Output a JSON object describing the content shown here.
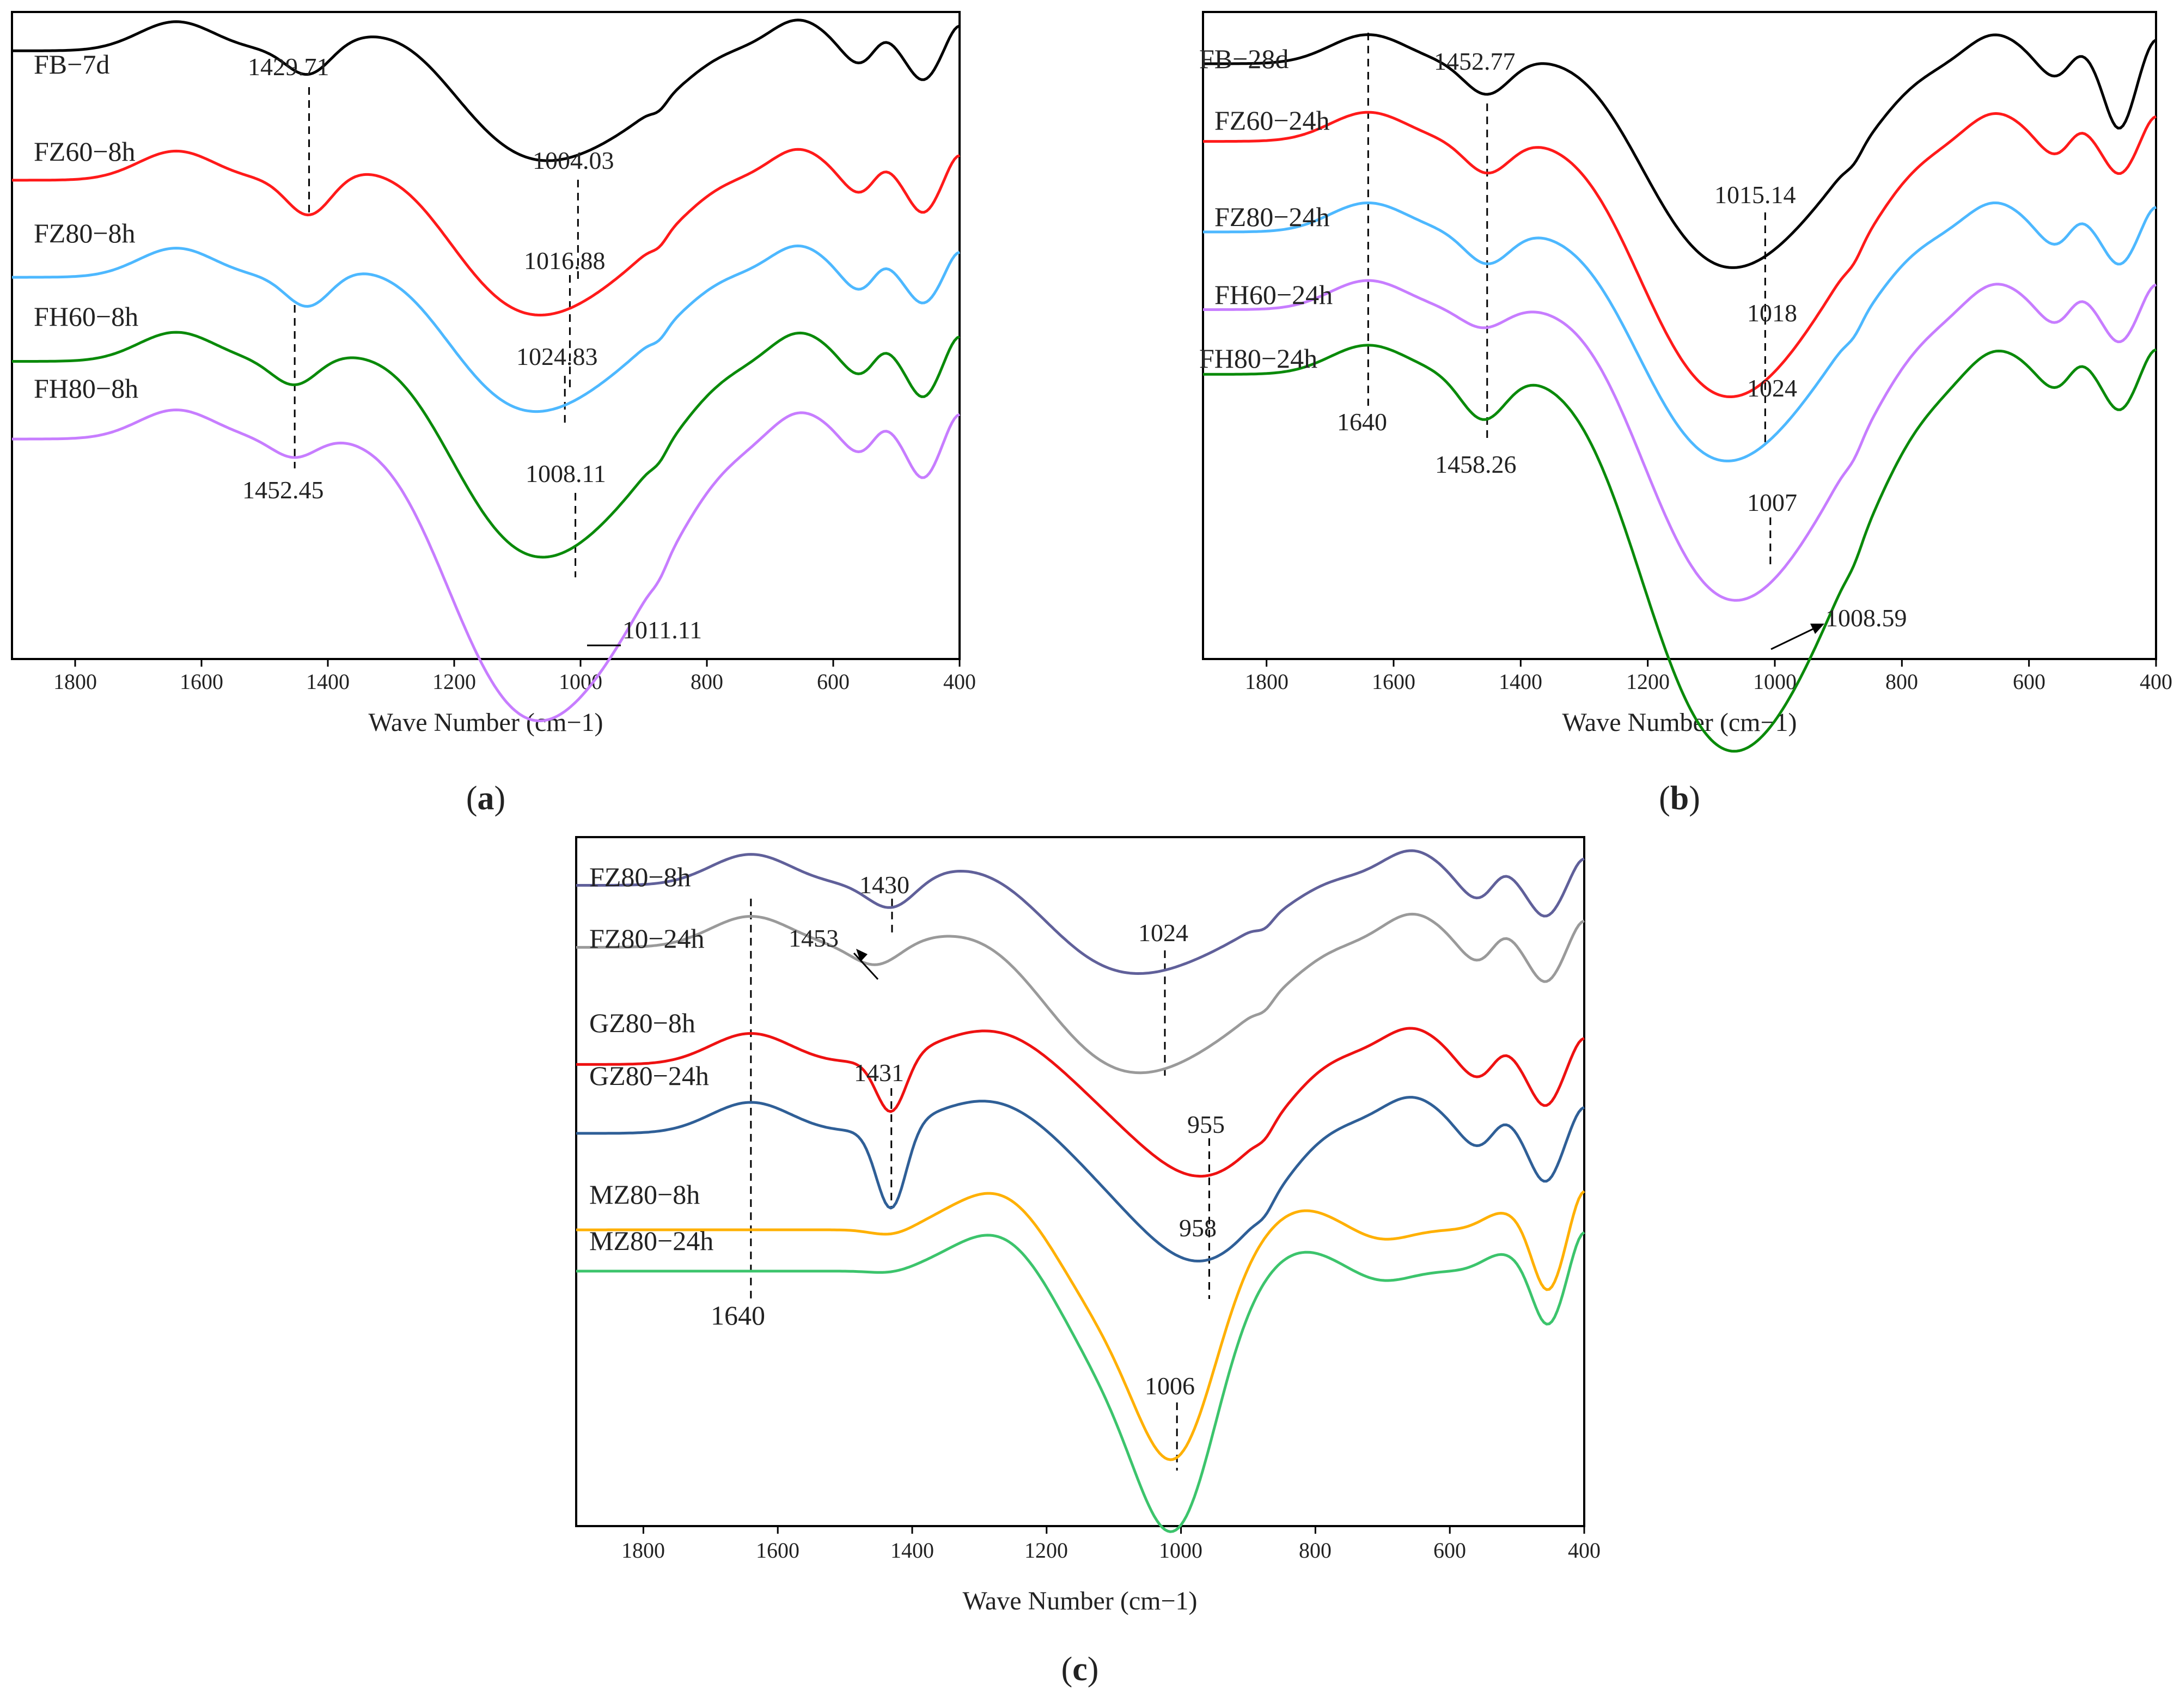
{
  "colors": {
    "black": "#000000",
    "red": "#ff1a1a",
    "lightblue": "#4db8ff",
    "green": "#0a8a0a",
    "purple": "#c77dff",
    "slate": "#60609a",
    "gray": "#9a9a9a",
    "red2": "#ee1111",
    "navy": "#2f5f97",
    "orange": "#ffb000",
    "mint": "#3cc46c"
  },
  "chart_data": [
    {
      "type": "line",
      "panel": "(a)",
      "xlabel": "Wave Number (cm−1)",
      "xlim": [
        1900,
        400
      ],
      "x_ticks": [
        "1800",
        "1600",
        "1400",
        "1200",
        "1000",
        "800",
        "600",
        "400"
      ],
      "series": [
        {
          "name": "FB−7d",
          "color": "black",
          "shape": "standard",
          "params": {
            "o": 0.06,
            "a": 0.06,
            "c1": 1429.71,
            "d1": 0.045,
            "c2": 1004.03,
            "d2": 0.13,
            "e": 0.045
          }
        },
        {
          "name": "FZ60−8h",
          "color": "red",
          "shape": "standard",
          "params": {
            "o": 0.26,
            "a": 0.05,
            "c1": 1429,
            "d1": 0.06,
            "c2": 1016.88,
            "d2": 0.16,
            "e": 0.05
          }
        },
        {
          "name": "FZ80−8h",
          "color": "lightblue",
          "shape": "standard",
          "params": {
            "o": 0.41,
            "a": 0.04,
            "c1": 1431,
            "d1": 0.05,
            "c2": 1024.83,
            "d2": 0.16,
            "e": 0.04
          }
        },
        {
          "name": "FH60−8h",
          "color": "green",
          "shape": "standard",
          "params": {
            "o": 0.54,
            "a": 0.05,
            "c1": 1452,
            "d1": 0.04,
            "c2": 1008.11,
            "d2": 0.23,
            "e": 0.055
          }
        },
        {
          "name": "FH80−8h",
          "color": "purple",
          "shape": "standard",
          "params": {
            "o": 0.66,
            "a": 0.05,
            "c1": 1452.45,
            "d1": 0.03,
            "c2": 1011.11,
            "d2": 0.33,
            "e": 0.06
          }
        }
      ],
      "annotations": [
        "1429.71",
        "1004.03",
        "1016.88",
        "1024.83",
        "1452.45",
        "1008.11",
        "1011.11"
      ]
    },
    {
      "type": "line",
      "panel": "(b)",
      "xlabel": "Wave Number (cm−1)",
      "xlim": [
        1900,
        400
      ],
      "x_ticks": [
        "1800",
        "1600",
        "1400",
        "1200",
        "1000",
        "800",
        "600",
        "400"
      ],
      "series": [
        {
          "name": "FB−28d",
          "color": "black",
          "shape": "standard",
          "params": {
            "o": 0.08,
            "a": 0.05,
            "c1": 1452.77,
            "d1": 0.05,
            "c2": 1015.14,
            "d2": 0.24,
            "e": 0.1
          }
        },
        {
          "name": "FZ60−24h",
          "color": "red",
          "shape": "standard",
          "params": {
            "o": 0.2,
            "a": 0.04,
            "c1": 1452,
            "d1": 0.05,
            "c2": 1018,
            "d2": 0.3,
            "e": 0.05
          }
        },
        {
          "name": "FZ80−24h",
          "color": "lightblue",
          "shape": "standard",
          "params": {
            "o": 0.34,
            "a": 0.04,
            "c1": 1452,
            "d1": 0.05,
            "c2": 1024,
            "d2": 0.27,
            "e": 0.05
          }
        },
        {
          "name": "FH60−24h",
          "color": "purple",
          "shape": "standard",
          "params": {
            "o": 0.46,
            "a": 0.04,
            "c1": 1458,
            "d1": 0.03,
            "c2": 1007,
            "d2": 0.34,
            "e": 0.05
          }
        },
        {
          "name": "FH80−24h",
          "color": "green",
          "shape": "standard",
          "params": {
            "o": 0.56,
            "a": 0.04,
            "c1": 1458.26,
            "d1": 0.07,
            "c2": 1008.59,
            "d2": 0.44,
            "e": 0.055
          }
        }
      ],
      "annotations": [
        "1452.77",
        "1015.14",
        "1018",
        "1024",
        "1640",
        "1458.26",
        "1007",
        "1008.59"
      ]
    },
    {
      "type": "line",
      "panel": "(c)",
      "xlabel": "Wave Number (cm−1)",
      "xlim": [
        1900,
        400
      ],
      "x_ticks": [
        "1800",
        "1600",
        "1400",
        "1200",
        "1000",
        "800",
        "600",
        "400"
      ],
      "series": [
        {
          "name": "FZ80−8h",
          "color": "slate",
          "shape": "standard",
          "params": {
            "o": 0.07,
            "a": 0.04,
            "c1": 1430,
            "d1": 0.04,
            "c2": 1024,
            "d2": 0.1,
            "e": 0.045
          }
        },
        {
          "name": "FZ80−24h",
          "color": "gray",
          "shape": "standard",
          "params": {
            "o": 0.16,
            "a": 0.035,
            "c1": 1453,
            "d1": 0.03,
            "c2": 1015,
            "d2": 0.14,
            "e": 0.05
          }
        },
        {
          "name": "GZ80−8h",
          "color": "red2",
          "shape": "steep",
          "params": {
            "o": 0.33,
            "a": 0.03,
            "c1": 1431,
            "d1": 0.08,
            "c2": 955,
            "d2": 0.14,
            "e": 0.06
          }
        },
        {
          "name": "GZ80−24h",
          "color": "navy",
          "shape": "steep",
          "params": {
            "o": 0.43,
            "a": 0.04,
            "c1": 1431,
            "d1": 0.12,
            "c2": 958,
            "d2": 0.16,
            "e": 0.07
          }
        },
        {
          "name": "MZ80−8h",
          "color": "orange",
          "shape": "moroccan",
          "params": {
            "o": 0.57,
            "a": 0.02,
            "c1": 1430,
            "d1": 0.01,
            "c2": 1006,
            "d2": 0.3,
            "e": 0.09
          }
        },
        {
          "name": "MZ80−24h",
          "color": "mint",
          "shape": "moroccan",
          "params": {
            "o": 0.63,
            "a": 0.01,
            "c1": 1430,
            "d1": 0.005,
            "c2": 1006,
            "d2": 0.34,
            "e": 0.08
          }
        }
      ],
      "annotations": [
        "1430",
        "1453",
        "1024",
        "1431",
        "955",
        "958",
        "1006",
        "1640"
      ]
    }
  ],
  "panel_labels": [
    "(a)",
    "(b)",
    "(c)"
  ],
  "panel_label_parts": {
    "a": {
      "open": "(",
      "letter": "a",
      "close": ")"
    },
    "b": {
      "open": "(",
      "letter": "b",
      "close": ")"
    },
    "c": {
      "open": "(",
      "letter": "c",
      "close": ")"
    }
  }
}
